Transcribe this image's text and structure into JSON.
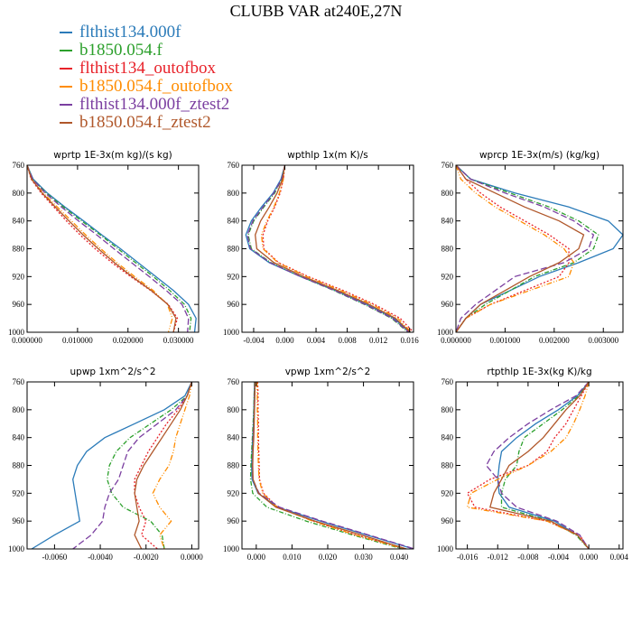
{
  "title": "CLUBB VAR at240E,27N",
  "legend": [
    {
      "label": "flthist134.000f",
      "color": "#2b7bb9"
    },
    {
      "label": "b1850.054.f",
      "color": "#2ca02c"
    },
    {
      "label": "flthist134_outofbox",
      "color": "#e8222a"
    },
    {
      "label": "b1850.054.f_outofbox",
      "color": "#ff8c00"
    },
    {
      "label": "flthist134.000f_ztest2",
      "color": "#7b3fa0"
    },
    {
      "label": "b1850.054.f_ztest2",
      "color": "#b0572a"
    }
  ],
  "chart_data": [
    {
      "type": "line",
      "title": "wprtp  1E-3x(m kg)/(s kg)",
      "xlim": [
        0,
        0.034
      ],
      "ylim": [
        760,
        1000
      ],
      "y_inverted": true,
      "xticks": [
        0,
        0.01,
        0.02,
        0.03
      ],
      "xtick_labels": [
        "0.000000",
        "0.010000",
        "0.020000",
        "0.030000"
      ],
      "yticks": [
        760,
        800,
        840,
        880,
        920,
        960,
        1000
      ],
      "y": [
        760,
        780,
        800,
        820,
        840,
        860,
        880,
        900,
        920,
        940,
        960,
        980,
        1000
      ],
      "series": [
        {
          "values": [
            0.0,
            0.0012,
            0.004,
            0.0075,
            0.0112,
            0.0148,
            0.0185,
            0.022,
            0.0255,
            0.029,
            0.032,
            0.0335,
            0.0332
          ]
        },
        {
          "values": [
            0.0,
            0.0011,
            0.0038,
            0.0072,
            0.0108,
            0.0145,
            0.018,
            0.0215,
            0.025,
            0.0283,
            0.0312,
            0.0325,
            0.0322
          ]
        },
        {
          "values": [
            0.0,
            0.0008,
            0.0028,
            0.0053,
            0.0078,
            0.0105,
            0.0135,
            0.0168,
            0.0205,
            0.0245,
            0.028,
            0.0298,
            0.029
          ]
        },
        {
          "values": [
            0.0,
            0.0009,
            0.0032,
            0.006,
            0.0088,
            0.0116,
            0.0146,
            0.0178,
            0.0213,
            0.025,
            0.0278,
            0.0288,
            0.028
          ]
        },
        {
          "values": [
            0.0,
            0.0011,
            0.0036,
            0.0068,
            0.0102,
            0.0138,
            0.0172,
            0.0207,
            0.0242,
            0.0276,
            0.0307,
            0.032,
            0.0318
          ]
        },
        {
          "values": [
            0.0,
            0.0009,
            0.003,
            0.0056,
            0.0083,
            0.0111,
            0.0141,
            0.0173,
            0.0208,
            0.0246,
            0.0279,
            0.0295,
            0.029
          ]
        }
      ]
    },
    {
      "type": "line",
      "title": "wpthlp  1x(m K)/s",
      "xlim": [
        -0.0055,
        0.0165
      ],
      "ylim": [
        760,
        1000
      ],
      "y_inverted": true,
      "xticks": [
        -0.004,
        0,
        0.004,
        0.008,
        0.012,
        0.016
      ],
      "xtick_labels": [
        "-0.004",
        "0.000",
        "0.004",
        "0.008",
        "0.012",
        "0.016"
      ],
      "yticks": [
        760,
        800,
        840,
        880,
        920,
        960,
        1000
      ],
      "y": [
        760,
        780,
        800,
        820,
        840,
        860,
        880,
        900,
        920,
        940,
        960,
        980,
        1000
      ],
      "series": [
        {
          "values": [
            0.0,
            -0.0005,
            -0.0015,
            -0.003,
            -0.0043,
            -0.005,
            -0.0045,
            -0.002,
            0.002,
            0.0065,
            0.0105,
            0.014,
            0.016
          ]
        },
        {
          "values": [
            0.0,
            -0.0004,
            -0.0013,
            -0.0027,
            -0.004,
            -0.0047,
            -0.0043,
            -0.0018,
            0.002,
            0.0063,
            0.0102,
            0.0137,
            0.0158
          ]
        },
        {
          "values": [
            0.0,
            -0.0002,
            -0.0006,
            -0.0013,
            -0.0022,
            -0.0028,
            -0.0027,
            -0.0008,
            0.003,
            0.0075,
            0.0115,
            0.0148,
            0.0165
          ]
        },
        {
          "values": [
            0.0,
            -0.0002,
            -0.0007,
            -0.0014,
            -0.0023,
            -0.003,
            -0.0028,
            -0.0009,
            0.0028,
            0.0072,
            0.0112,
            0.0145,
            0.0162
          ]
        },
        {
          "values": [
            0.0,
            -0.0004,
            -0.0014,
            -0.0028,
            -0.0041,
            -0.0048,
            -0.0044,
            -0.0019,
            0.002,
            0.0064,
            0.0103,
            0.0138,
            0.0159
          ]
        },
        {
          "values": [
            0.0,
            -0.0003,
            -0.001,
            -0.002,
            -0.0031,
            -0.0038,
            -0.0036,
            -0.0014,
            0.0024,
            0.0068,
            0.0108,
            0.0142,
            0.0161
          ]
        }
      ]
    },
    {
      "type": "line",
      "title": "wprcp  1E-3x(m/s) (kg/kg)",
      "xlim": [
        0,
        0.0034
      ],
      "ylim": [
        760,
        1000
      ],
      "y_inverted": true,
      "xticks": [
        0,
        0.001,
        0.002,
        0.003
      ],
      "xtick_labels": [
        "0.000000",
        "0.001000",
        "0.002000",
        "0.003000"
      ],
      "yticks": [
        760,
        800,
        840,
        880,
        920,
        960,
        1000
      ],
      "y": [
        760,
        780,
        800,
        820,
        840,
        860,
        880,
        900,
        920,
        940,
        960,
        980,
        1000
      ],
      "series": [
        {
          "values": [
            0.0,
            0.0003,
            0.0012,
            0.0023,
            0.0031,
            0.0034,
            0.0032,
            0.0025,
            0.0017,
            0.0011,
            0.0005,
            0.0002,
            0.0
          ]
        },
        {
          "values": [
            0.0,
            0.0003,
            0.0011,
            0.0019,
            0.0025,
            0.0029,
            0.0028,
            0.0024,
            0.0016,
            0.0011,
            0.0006,
            0.0002,
            0.0
          ]
        },
        {
          "values": [
            0.0,
            0.0002,
            0.0005,
            0.0009,
            0.0014,
            0.0019,
            0.0023,
            0.0023,
            0.0021,
            0.0014,
            0.0007,
            0.0002,
            0.0
          ]
        },
        {
          "values": [
            0.0,
            0.0001,
            0.0004,
            0.0008,
            0.0013,
            0.0018,
            0.0022,
            0.0024,
            0.0023,
            0.0015,
            0.0007,
            0.0002,
            0.0
          ]
        },
        {
          "values": [
            0.0,
            0.0003,
            0.001,
            0.0018,
            0.0024,
            0.0028,
            0.0027,
            0.0022,
            0.0012,
            0.0008,
            0.0004,
            0.0001,
            0.0
          ]
        },
        {
          "values": [
            0.0,
            0.0002,
            0.0008,
            0.0014,
            0.0021,
            0.0026,
            0.0025,
            0.0021,
            0.0015,
            0.001,
            0.0005,
            0.0002,
            0.0
          ]
        }
      ]
    },
    {
      "type": "line",
      "title": "upwp  1xm^2/s^2",
      "xlim": [
        -0.0072,
        0.0003
      ],
      "ylim": [
        760,
        1000
      ],
      "y_inverted": true,
      "xticks": [
        -0.006,
        -0.004,
        -0.002,
        0
      ],
      "xtick_labels": [
        "-0.0060",
        "-0.0040",
        "-0.0020",
        "0.0000"
      ],
      "yticks": [
        760,
        800,
        840,
        880,
        920,
        960,
        1000
      ],
      "y": [
        760,
        780,
        800,
        820,
        840,
        860,
        880,
        900,
        920,
        940,
        960,
        980,
        1000
      ],
      "series": [
        {
          "values": [
            0.0,
            -0.0003,
            -0.0012,
            -0.0025,
            -0.0038,
            -0.0046,
            -0.005,
            -0.0052,
            -0.0051,
            -0.005,
            -0.0049,
            -0.006,
            -0.007
          ]
        },
        {
          "values": [
            0.0,
            -0.0002,
            -0.0009,
            -0.0018,
            -0.0027,
            -0.0033,
            -0.0036,
            -0.0037,
            -0.0035,
            -0.003,
            -0.0018,
            -0.0013,
            -0.0012
          ]
        },
        {
          "values": [
            0.0,
            -0.0002,
            -0.0006,
            -0.0011,
            -0.0015,
            -0.0019,
            -0.0022,
            -0.0025,
            -0.0025,
            -0.0023,
            -0.002,
            -0.0022,
            -0.0015
          ]
        },
        {
          "values": [
            0.0,
            -0.0001,
            -0.0003,
            -0.0005,
            -0.0007,
            -0.0008,
            -0.001,
            -0.0014,
            -0.0017,
            -0.0014,
            -0.0009,
            -0.0014,
            -0.0012
          ]
        },
        {
          "values": [
            0.0,
            -0.0002,
            -0.0007,
            -0.0015,
            -0.0023,
            -0.0028,
            -0.003,
            -0.0032,
            -0.0036,
            -0.0038,
            -0.0039,
            -0.0044,
            -0.0052
          ]
        },
        {
          "values": [
            0.0,
            -0.0002,
            -0.0005,
            -0.0009,
            -0.0013,
            -0.0017,
            -0.0021,
            -0.0024,
            -0.0025,
            -0.0024,
            -0.0023,
            -0.0025,
            -0.0022
          ]
        }
      ]
    },
    {
      "type": "line",
      "title": "vpwp  1xm^2/s^2",
      "xlim": [
        -0.004,
        0.044
      ],
      "ylim": [
        760,
        1000
      ],
      "y_inverted": true,
      "xticks": [
        0,
        0.01,
        0.02,
        0.03,
        0.04
      ],
      "xtick_labels": [
        "0.000",
        "0.010",
        "0.020",
        "0.030",
        "0.040"
      ],
      "yticks": [
        760,
        800,
        840,
        880,
        920,
        960,
        1000
      ],
      "y": [
        760,
        780,
        800,
        820,
        840,
        860,
        880,
        900,
        920,
        940,
        960,
        980,
        1000
      ],
      "series": [
        {
          "values": [
            -0.0005,
            -0.0006,
            -0.0007,
            -0.0008,
            -0.001,
            -0.0012,
            -0.0013,
            -0.0012,
            0.0005,
            0.006,
            0.018,
            0.031,
            0.044
          ]
        },
        {
          "values": [
            -0.0005,
            -0.0006,
            -0.0007,
            -0.0009,
            -0.0011,
            -0.0013,
            -0.0015,
            -0.0016,
            -0.001,
            0.003,
            0.014,
            0.027,
            0.041
          ]
        },
        {
          "values": [
            0.0004,
            0.0005,
            0.0005,
            0.0006,
            0.0006,
            0.0007,
            0.0008,
            0.0009,
            0.002,
            0.006,
            0.016,
            0.028,
            0.042
          ]
        },
        {
          "values": [
            0.0002,
            0.0003,
            0.0003,
            0.0004,
            0.0004,
            0.0005,
            0.0006,
            0.0008,
            0.0018,
            0.0058,
            0.0158,
            0.0278,
            0.0415
          ]
        },
        {
          "values": [
            -0.0004,
            -0.0005,
            -0.0006,
            -0.0007,
            -0.0009,
            -0.001,
            -0.0011,
            -0.001,
            0.0008,
            0.0065,
            0.0185,
            0.0315,
            0.0443
          ]
        },
        {
          "values": [
            -0.0003,
            -0.0004,
            -0.0005,
            -0.0006,
            -0.0007,
            -0.0009,
            -0.001,
            -0.0009,
            0.0006,
            0.0055,
            0.0165,
            0.0295,
            0.042
          ]
        }
      ]
    },
    {
      "type": "line",
      "title": "rtpthlp  1E-3x(kg K)/kg",
      "xlim": [
        -0.0175,
        0.0045
      ],
      "ylim": [
        760,
        1000
      ],
      "y_inverted": true,
      "xticks": [
        -0.016,
        -0.012,
        -0.008,
        -0.004,
        0,
        0.004
      ],
      "xtick_labels": [
        "-0.016",
        "-0.012",
        "-0.008",
        "-0.004",
        "0.000",
        "0.004"
      ],
      "yticks": [
        760,
        800,
        840,
        880,
        920,
        960,
        1000
      ],
      "y": [
        760,
        780,
        800,
        820,
        840,
        860,
        880,
        900,
        920,
        940,
        960,
        980,
        1000
      ],
      "series": [
        {
          "values": [
            0.0,
            -0.0015,
            -0.004,
            -0.007,
            -0.0095,
            -0.0115,
            -0.0118,
            -0.012,
            -0.0118,
            -0.0105,
            -0.0045,
            -0.0015,
            0.0
          ]
        },
        {
          "values": [
            0.0,
            -0.0013,
            -0.0035,
            -0.006,
            -0.0085,
            -0.0092,
            -0.0095,
            -0.011,
            -0.0115,
            -0.0115,
            -0.005,
            -0.0017,
            0.0
          ]
        },
        {
          "values": [
            0.0,
            -0.001,
            -0.002,
            -0.003,
            -0.0045,
            -0.0055,
            -0.008,
            -0.013,
            -0.016,
            -0.015,
            -0.0055,
            -0.0012,
            0.0
          ]
        },
        {
          "values": [
            0.0,
            -0.0005,
            -0.0012,
            -0.002,
            -0.003,
            -0.005,
            -0.008,
            -0.012,
            -0.0155,
            -0.016,
            -0.0055,
            -0.0015,
            0.0
          ]
        },
        {
          "values": [
            0.0,
            -0.0017,
            -0.005,
            -0.008,
            -0.0105,
            -0.0125,
            -0.0135,
            -0.012,
            -0.0115,
            -0.0095,
            -0.0042,
            -0.0012,
            0.0
          ]
        },
        {
          "values": [
            0.0,
            -0.0012,
            -0.003,
            -0.0045,
            -0.006,
            -0.008,
            -0.0105,
            -0.0115,
            -0.0125,
            -0.013,
            -0.005,
            -0.0015,
            0.0
          ]
        }
      ]
    }
  ]
}
